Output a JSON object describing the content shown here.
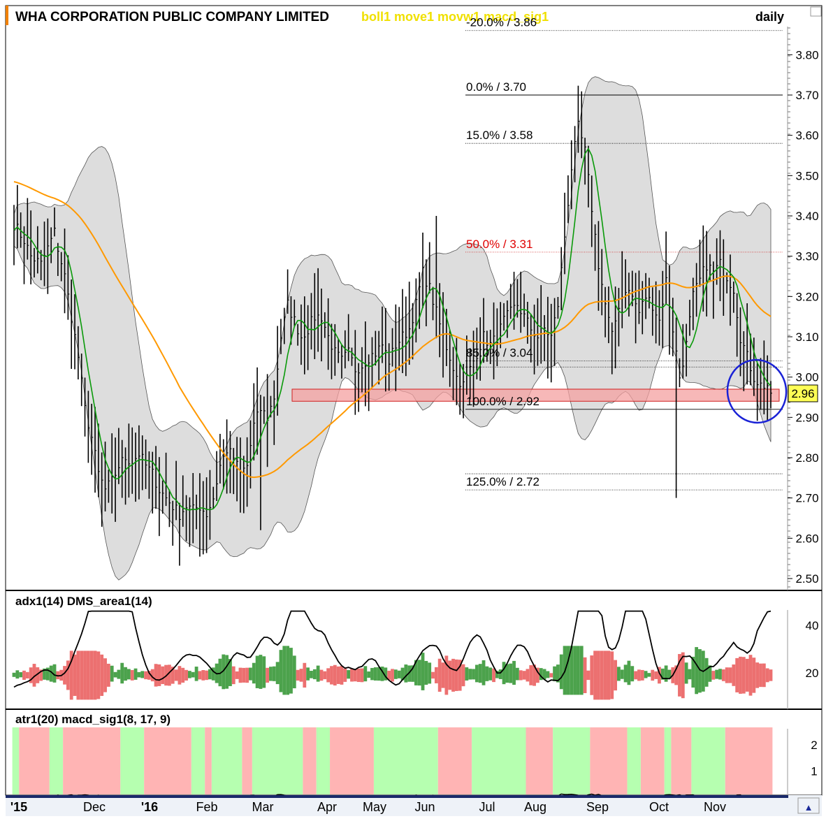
{
  "header": {
    "title": "WHA CORPORATION PUBLIC COMPANY LIMITED",
    "indicators": "boll1 move1 movw1 macd_sig1",
    "period": "daily"
  },
  "colors": {
    "band_fill": "#d9d9d9",
    "ma_short": "#0a9a0a",
    "ma_long": "#ff9900",
    "support_zone": "#f4a0a0",
    "annotation": "#1a22d6",
    "bull": "#4ca24c",
    "bear": "#ec7070",
    "state_bull": "#b6ffb0",
    "state_bear": "#ffb4b4",
    "price_tag": "#ffff55",
    "header_indicators": "#f0e000"
  },
  "chart_data": [
    {
      "type": "ohlc",
      "panel": "price",
      "ylim": [
        2.48,
        3.9
      ],
      "y_ticks": [
        2.5,
        2.6,
        2.7,
        2.8,
        2.9,
        3.0,
        3.1,
        3.2,
        3.3,
        3.4,
        3.5,
        3.6,
        3.7,
        3.8
      ],
      "y_tick_labels": [
        "2.50",
        "2.60",
        "2.70",
        "2.80",
        "2.90",
        "3.00",
        "3.10",
        "3.20",
        "3.30",
        "3.40",
        "3.50",
        "3.60",
        "3.70",
        "3.80"
      ],
      "months": [
        "'15",
        "Dec",
        "'16",
        "Feb",
        "Mar",
        "Apr",
        "May",
        "Jun",
        "Jul",
        "Aug",
        "Sep",
        "Oct",
        "Nov"
      ],
      "close_anchors": [
        [
          0,
          3.38
        ],
        [
          3,
          3.34
        ],
        [
          5,
          3.3
        ],
        [
          8,
          3.28
        ],
        [
          10,
          3.32
        ],
        [
          12,
          3.36
        ],
        [
          13,
          3.32
        ],
        [
          15,
          3.25
        ],
        [
          17,
          3.15
        ],
        [
          19,
          3.05
        ],
        [
          21,
          2.92
        ],
        [
          23,
          2.85
        ],
        [
          25,
          2.76
        ],
        [
          27,
          2.72
        ],
        [
          29,
          2.74
        ],
        [
          31,
          2.78
        ],
        [
          33,
          2.8
        ],
        [
          35,
          2.79
        ],
        [
          37,
          2.81
        ],
        [
          39,
          2.78
        ],
        [
          41,
          2.76
        ],
        [
          43,
          2.72
        ],
        [
          45,
          2.7
        ],
        [
          47,
          2.68
        ],
        [
          49,
          2.66
        ],
        [
          51,
          2.68
        ],
        [
          53,
          2.67
        ],
        [
          55,
          2.68
        ],
        [
          57,
          2.66
        ],
        [
          59,
          2.7
        ],
        [
          61,
          2.78
        ],
        [
          63,
          2.82
        ],
        [
          65,
          2.8
        ],
        [
          67,
          2.76
        ],
        [
          69,
          2.78
        ],
        [
          71,
          2.88
        ],
        [
          73,
          2.92
        ],
        [
          75,
          2.9
        ],
        [
          77,
          2.95
        ],
        [
          79,
          3.1
        ],
        [
          81,
          3.18
        ],
        [
          83,
          3.14
        ],
        [
          85,
          3.1
        ],
        [
          87,
          3.12
        ],
        [
          89,
          3.15
        ],
        [
          91,
          3.15
        ],
        [
          93,
          3.1
        ],
        [
          95,
          3.06
        ],
        [
          97,
          3.04
        ],
        [
          99,
          3.06
        ],
        [
          101,
          3.02
        ],
        [
          103,
          3.03
        ],
        [
          105,
          3.05
        ],
        [
          107,
          3.06
        ],
        [
          109,
          3.08
        ],
        [
          111,
          3.04
        ],
        [
          113,
          3.08
        ],
        [
          115,
          3.1
        ],
        [
          117,
          3.12
        ],
        [
          119,
          3.18
        ],
        [
          121,
          3.26
        ],
        [
          123,
          3.22
        ],
        [
          125,
          3.16
        ],
        [
          127,
          3.1
        ],
        [
          129,
          3.05
        ],
        [
          131,
          3.0
        ],
        [
          133,
          2.98
        ],
        [
          135,
          3.02
        ],
        [
          137,
          3.06
        ],
        [
          139,
          3.1
        ],
        [
          141,
          3.08
        ],
        [
          143,
          3.1
        ],
        [
          145,
          3.14
        ],
        [
          147,
          3.16
        ],
        [
          149,
          3.18
        ],
        [
          151,
          3.15
        ],
        [
          153,
          3.12
        ],
        [
          155,
          3.1
        ],
        [
          157,
          3.12
        ],
        [
          159,
          3.1
        ],
        [
          161,
          3.18
        ],
        [
          163,
          3.35
        ],
        [
          165,
          3.52
        ],
        [
          167,
          3.62
        ],
        [
          169,
          3.56
        ],
        [
          171,
          3.42
        ],
        [
          173,
          3.28
        ],
        [
          175,
          3.18
        ],
        [
          177,
          3.1
        ],
        [
          179,
          3.18
        ],
        [
          181,
          3.22
        ],
        [
          183,
          3.2
        ],
        [
          185,
          3.16
        ],
        [
          187,
          3.2
        ],
        [
          189,
          3.18
        ],
        [
          191,
          3.14
        ],
        [
          193,
          3.24
        ],
        [
          195,
          3.12
        ],
        [
          197,
          3.0
        ],
        [
          199,
          3.08
        ],
        [
          201,
          3.2
        ],
        [
          203,
          3.24
        ],
        [
          205,
          3.28
        ],
        [
          207,
          3.26
        ],
        [
          209,
          3.28
        ],
        [
          211,
          3.25
        ],
        [
          213,
          3.22
        ],
        [
          215,
          3.1
        ],
        [
          217,
          3.05
        ],
        [
          219,
          3.0
        ],
        [
          221,
          2.98
        ],
        [
          223,
          2.98
        ],
        [
          224,
          2.96
        ]
      ],
      "sessions": 225,
      "fibonacci_levels": [
        {
          "label": "-20.0% / 3.86",
          "value": 3.86
        },
        {
          "label": "0.0% / 3.70",
          "value": 3.7
        },
        {
          "label": "15.0% / 3.58",
          "value": 3.58
        },
        {
          "label": "50.0% / 3.31",
          "value": 3.31
        },
        {
          "label": "85.0% / 3.04",
          "value": 3.04
        },
        {
          "label": "100.0% / 2.92",
          "value": 2.92
        },
        {
          "label": "125.0% / 2.72",
          "value": 2.72
        }
      ],
      "support_zone": [
        2.94,
        2.97
      ],
      "last_price": "2.96"
    },
    {
      "type": "area",
      "panel": "adx1(14) DMS_area1(14)",
      "ylim": [
        2,
        49
      ],
      "y_ticks": [
        20,
        40
      ],
      "y_tick_labels": [
        "20",
        "40"
      ]
    },
    {
      "type": "heatmap",
      "panel": "atr1(20) macd_sig1(8, 17, 9)",
      "ylim": [
        0,
        2.8
      ],
      "y_ticks": [
        1,
        2
      ],
      "y_tick_labels": [
        "1",
        "2"
      ]
    }
  ],
  "panels": {
    "adx_title": "adx1(14) DMS_area1(14)",
    "atr_title": "atr1(20) macd_sig1(8, 17, 9)"
  },
  "controls": {
    "scroll_arrow": "▲"
  }
}
